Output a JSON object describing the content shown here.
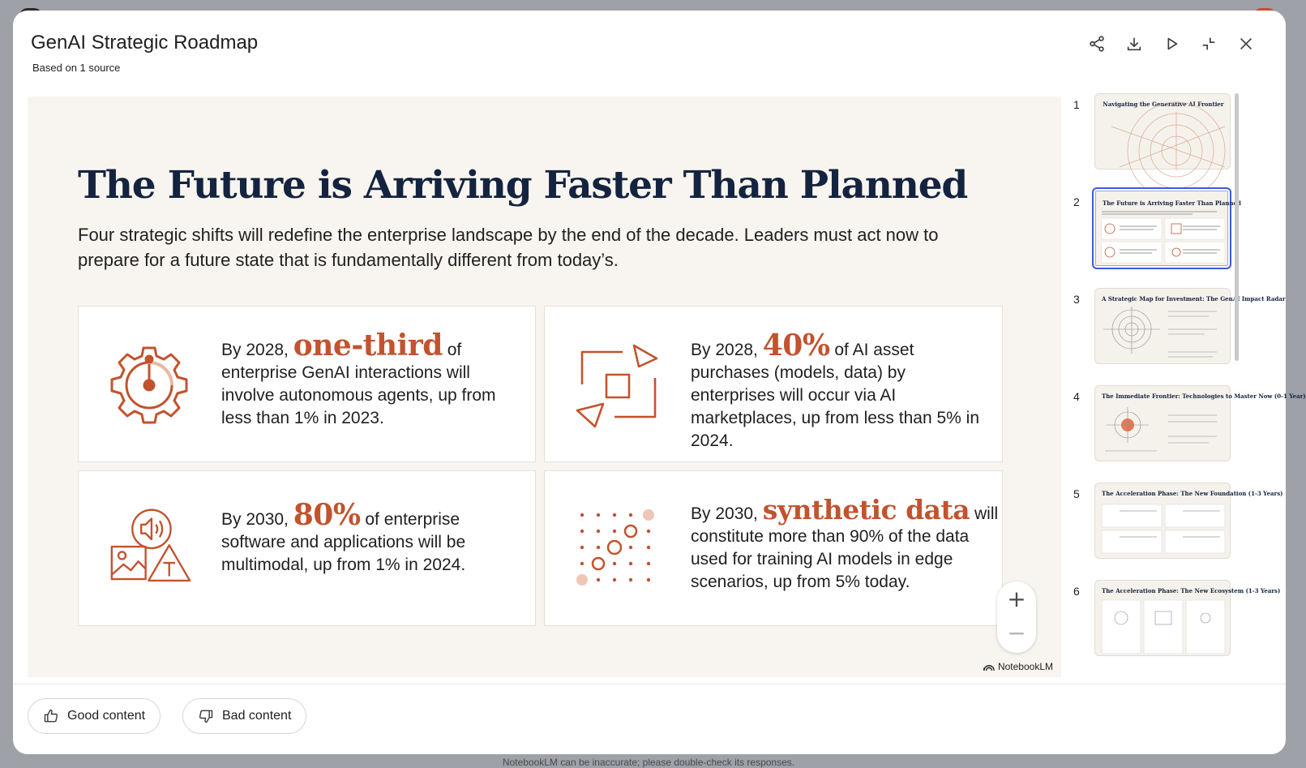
{
  "header": {
    "title": "GenAI Strategic Roadmap",
    "subtitle": "Based on 1 source"
  },
  "slide": {
    "heading": "The Future is Arriving Faster Than Planned",
    "intro": "Four strategic shifts will redefine the enterprise landscape by the end of the decade. Leaders must act now to prepare for a future state that is fundamentally different from today’s.",
    "cards": [
      {
        "prefix": "By 2028, ",
        "highlight": "one-third",
        "suffix": " of enterprise GenAI interactions will involve autonomous agents, up from less than 1% in 2023.",
        "icon": "gear-timer-icon"
      },
      {
        "prefix": "By 2028, ",
        "highlight": "40%",
        "suffix": " of AI asset purchases (models, data) by enterprises will occur via AI marketplaces, up from less than 5% in 2024.",
        "icon": "marketplace-arrows-icon"
      },
      {
        "prefix": "By 2030, ",
        "highlight": "80%",
        "suffix": " of enterprise software and applications will be multimodal, up from 1% in 2024.",
        "icon": "multimodal-icon"
      },
      {
        "prefix": "By 2030, ",
        "highlight": "synthetic data",
        "suffix": " will constitute more than 90% of the data used for training AI models in edge scenarios, up from 5% today.",
        "icon": "synthetic-data-dots-icon"
      }
    ],
    "brand": "NotebookLM",
    "zoom_in": "+",
    "zoom_out": "−"
  },
  "thumbnails": [
    {
      "num": "1",
      "title": "Navigating the Generative AI Frontier"
    },
    {
      "num": "2",
      "title": "The Future is Arriving Faster Than Planned"
    },
    {
      "num": "3",
      "title": "A Strategic Map for Investment: The GenAI Impact Radar"
    },
    {
      "num": "4",
      "title": "The Immediate Frontier: Technologies to Master Now (0-1 Year)"
    },
    {
      "num": "5",
      "title": "The Acceleration Phase: The New Foundation (1-3 Years)"
    },
    {
      "num": "6",
      "title": "The Acceleration Phase: The New Ecosystem (1-3 Years)"
    }
  ],
  "selected_thumbnail": "2",
  "feedback": {
    "good": "Good content",
    "bad": "Bad content"
  },
  "disclaimer": "NotebookLM can be inaccurate; please double-check its responses.",
  "colors": {
    "accent": "#c2532e",
    "navy": "#14233f",
    "selection": "#3b5bdb"
  }
}
